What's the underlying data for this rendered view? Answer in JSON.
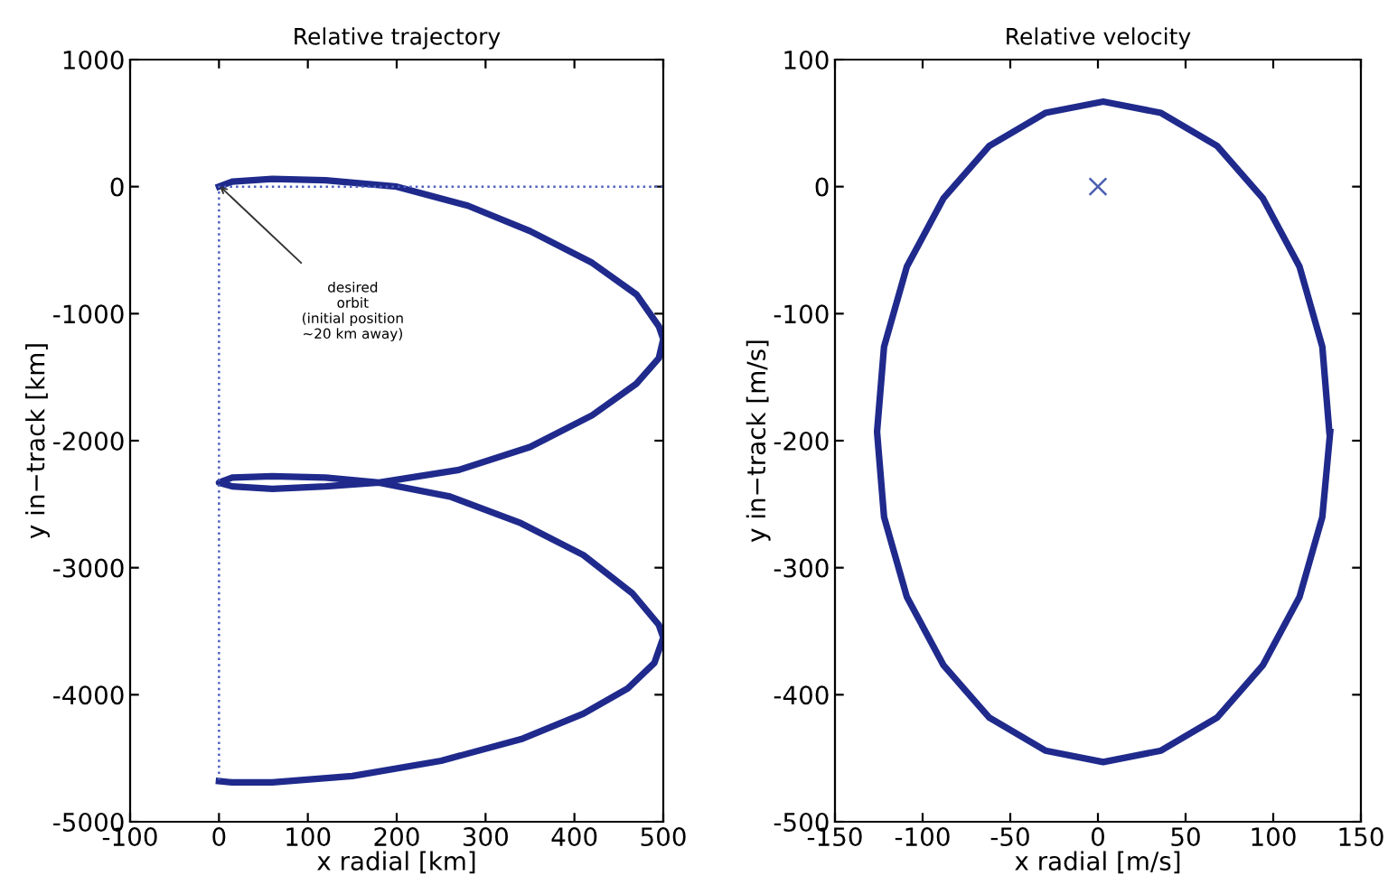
{
  "chart_data": [
    {
      "type": "line",
      "title": "Relative trajectory",
      "xlabel": "x radial [km]",
      "ylabel": "y in−track [km]",
      "xlim": [
        -100,
        500
      ],
      "ylim": [
        -5000,
        1000
      ],
      "xticks": [
        -100,
        0,
        100,
        200,
        300,
        400,
        500
      ],
      "yticks": [
        -5000,
        -4000,
        -3000,
        -2000,
        -1000,
        0,
        1000
      ],
      "grid": false,
      "legend": false,
      "annotations": [
        "desired\norbit\n(initial position\n~20 km away)"
      ],
      "series": [
        {
          "type": "line",
          "color": "#1f2a8c",
          "line_style": "solid",
          "marker": "none",
          "x": [
            0,
            15,
            60,
            120,
            200,
            280,
            350,
            420,
            470,
            495,
            500,
            495,
            470,
            420,
            350,
            270,
            180,
            120,
            60,
            15,
            0,
            15,
            60,
            120,
            180,
            260,
            340,
            410,
            465,
            495,
            500,
            490,
            460,
            410,
            340,
            250,
            150,
            60,
            15,
            0
          ],
          "values": [
            0,
            40,
            60,
            50,
            0,
            -150,
            -350,
            -600,
            -850,
            -1100,
            -1200,
            -1350,
            -1550,
            -1800,
            -2050,
            -2230,
            -2330,
            -2360,
            -2380,
            -2360,
            -2330,
            -2290,
            -2280,
            -2290,
            -2330,
            -2440,
            -2650,
            -2900,
            -3200,
            -3450,
            -3550,
            -3750,
            -3950,
            -4150,
            -4350,
            -4520,
            -4640,
            -4690,
            -4690,
            -4680
          ]
        },
        {
          "type": "line",
          "color": "#5060c0",
          "line_style": "dotted",
          "marker": "none",
          "x": [
            500,
            0,
            0
          ],
          "values": [
            0,
            0,
            -4700
          ]
        }
      ]
    },
    {
      "type": "line",
      "title": "Relative velocity",
      "xlabel": "x radial [m/s]",
      "ylabel": "y in−track [m/s]",
      "xlim": [
        -150,
        150
      ],
      "ylim": [
        -500,
        100
      ],
      "xticks": [
        -150,
        -100,
        -50,
        0,
        50,
        100,
        150
      ],
      "yticks": [
        -500,
        -400,
        -300,
        -200,
        -100,
        0,
        100
      ],
      "grid": false,
      "legend": false,
      "series": [
        {
          "type": "line",
          "color": "#1f2a8c",
          "line_style": "solid",
          "marker": "none",
          "x": [
            132,
            128,
            115,
            94,
            68,
            36,
            3,
            -30,
            -62,
            -88,
            -109,
            -122,
            -126,
            -122,
            -109,
            -88,
            -62,
            -30,
            3,
            36,
            68,
            94,
            115,
            128,
            132.5
          ],
          "values": [
            -193,
            -126,
            -63,
            -9,
            32,
            58,
            67,
            58,
            32,
            -9,
            -63,
            -126,
            -193,
            -260,
            -323,
            -377,
            -418,
            -444,
            -453,
            -444,
            -418,
            -377,
            -323,
            -260,
            -193
          ]
        },
        {
          "type": "scatter",
          "color": "#4a5fb0",
          "marker": "cross",
          "x": [
            0
          ],
          "values": [
            0
          ]
        }
      ]
    }
  ]
}
